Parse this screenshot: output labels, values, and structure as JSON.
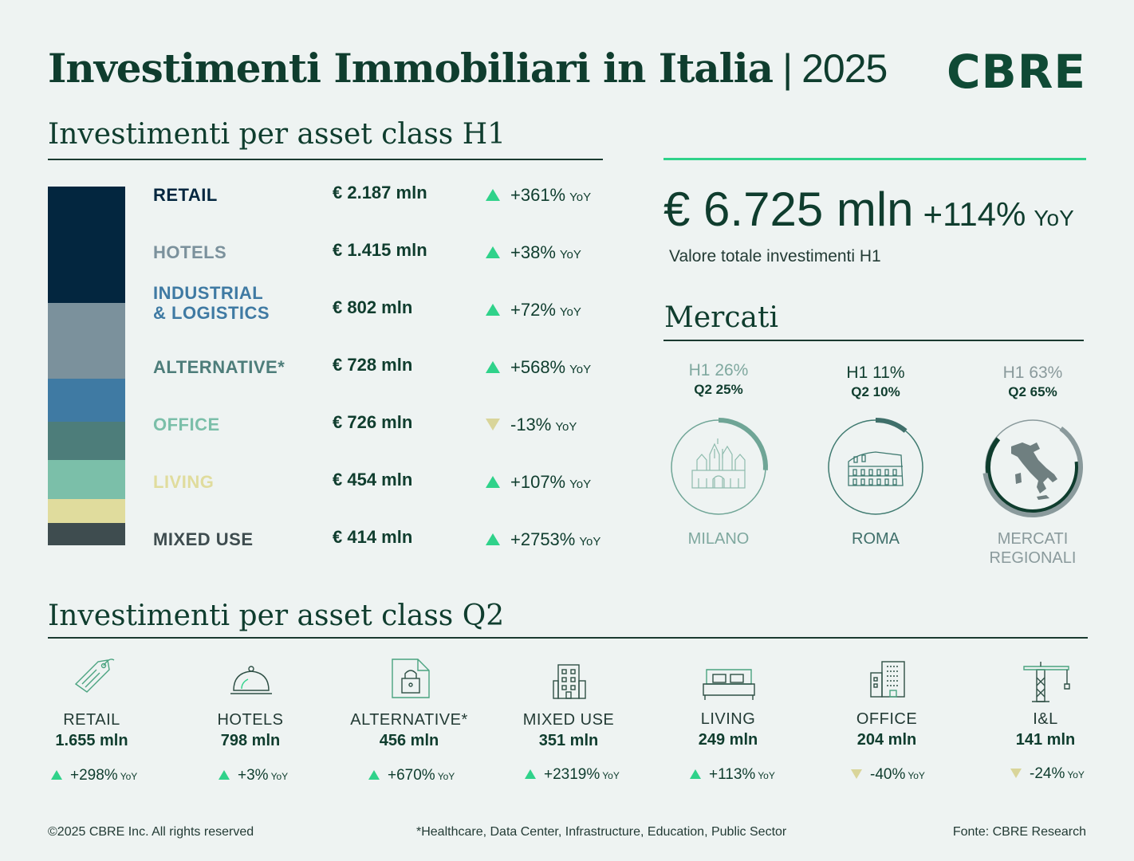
{
  "header": {
    "title": "Investimenti Immobiliari in Italia",
    "separator": "|",
    "year": "2025",
    "logo": "CBRE"
  },
  "h1_section": {
    "title": "Investimenti per asset class H1"
  },
  "total": {
    "value": "€ 6.725 mln",
    "yoy": "+114%",
    "yoy_suffix": "YoY",
    "caption": "Valore totale investimenti H1"
  },
  "markets_section": {
    "title": "Mercati",
    "items": [
      {
        "h1": "H1 26%",
        "q2": "Q2 25%",
        "name": "MILANO",
        "name2": "",
        "share": 0.26,
        "icon": "duomo-icon"
      },
      {
        "h1": "H1 11%",
        "q2": "Q2 10%",
        "name": "ROMA",
        "name2": "",
        "share": 0.11,
        "icon": "colosseum-icon"
      },
      {
        "h1": "H1 63%",
        "q2": "Q2 65%",
        "name": "MERCATI",
        "name2": "REGIONALI",
        "share": 0.63,
        "icon": "italy-map-icon"
      }
    ]
  },
  "q2_section": {
    "title": "Investimenti per asset class Q2",
    "items": [
      {
        "name": "RETAIL",
        "value": "1.655 mln",
        "yoy": "+298%",
        "dir": "up",
        "icon": "price-tag-icon"
      },
      {
        "name": "HOTELS",
        "value": "798 mln",
        "yoy": "+3%",
        "dir": "up",
        "icon": "cloche-icon"
      },
      {
        "name": "ALTERNATIVE*",
        "value": "456 mln",
        "yoy": "+670%",
        "dir": "up",
        "icon": "secure-document-icon"
      },
      {
        "name": "MIXED USE",
        "value": "351 mln",
        "yoy": "+2319%",
        "dir": "up",
        "icon": "building-icon"
      },
      {
        "name": "LIVING",
        "value": "249 mln",
        "yoy": "+113%",
        "dir": "up",
        "icon": "bed-icon"
      },
      {
        "name": "OFFICE",
        "value": "204 mln",
        "yoy": "-40%",
        "dir": "down",
        "icon": "office-building-icon"
      },
      {
        "name": "I&L",
        "value": "141 mln",
        "yoy": "-24%",
        "dir": "down",
        "icon": "crane-icon"
      }
    ]
  },
  "yoy_label": "YoY",
  "footer": {
    "copyright": "©2025 CBRE Inc. All rights reserved",
    "note": "*Healthcare, Data Center, Infrastructure, Education, Public Sector",
    "source": "Fonte: CBRE Research"
  },
  "chart_data": {
    "type": "bar",
    "title": "Investimenti per asset class H1",
    "stacked": true,
    "orientation": "vertical",
    "unit": "€ mln",
    "categories": [
      "RETAIL",
      "HOTELS",
      "INDUSTRIAL & LOGISTICS",
      "ALTERNATIVE*",
      "OFFICE",
      "LIVING",
      "MIXED USE"
    ],
    "label_lines": [
      [
        "RETAIL"
      ],
      [
        "HOTELS"
      ],
      [
        "INDUSTRIAL",
        "& LOGISTICS"
      ],
      [
        "ALTERNATIVE*"
      ],
      [
        "OFFICE"
      ],
      [
        "LIVING"
      ],
      [
        "MIXED USE"
      ]
    ],
    "values": [
      2187,
      1415,
      802,
      728,
      726,
      454,
      414
    ],
    "value_labels": [
      "€ 2.187 mln",
      "€ 1.415 mln",
      "€ 802 mln",
      "€ 728 mln",
      "€ 726 mln",
      "€ 454 mln",
      "€ 414 mln"
    ],
    "yoy": [
      "+361%",
      "+38%",
      "+72%",
      "+568%",
      "-13%",
      "+107%",
      "+2753%"
    ],
    "yoy_dir": [
      "up",
      "up",
      "up",
      "up",
      "down",
      "up",
      "up"
    ],
    "colors": [
      "#03263f",
      "#7b919c",
      "#3f7aa3",
      "#4d7d7a",
      "#7bbfa9",
      "#e0dc9d",
      "#3e4c4f"
    ],
    "label_colors": [
      "#03263f",
      "#7b919c",
      "#3f7aa3",
      "#4d7d7a",
      "#7bbfa9",
      "#e0dc9d",
      "#3e4c4f"
    ]
  }
}
